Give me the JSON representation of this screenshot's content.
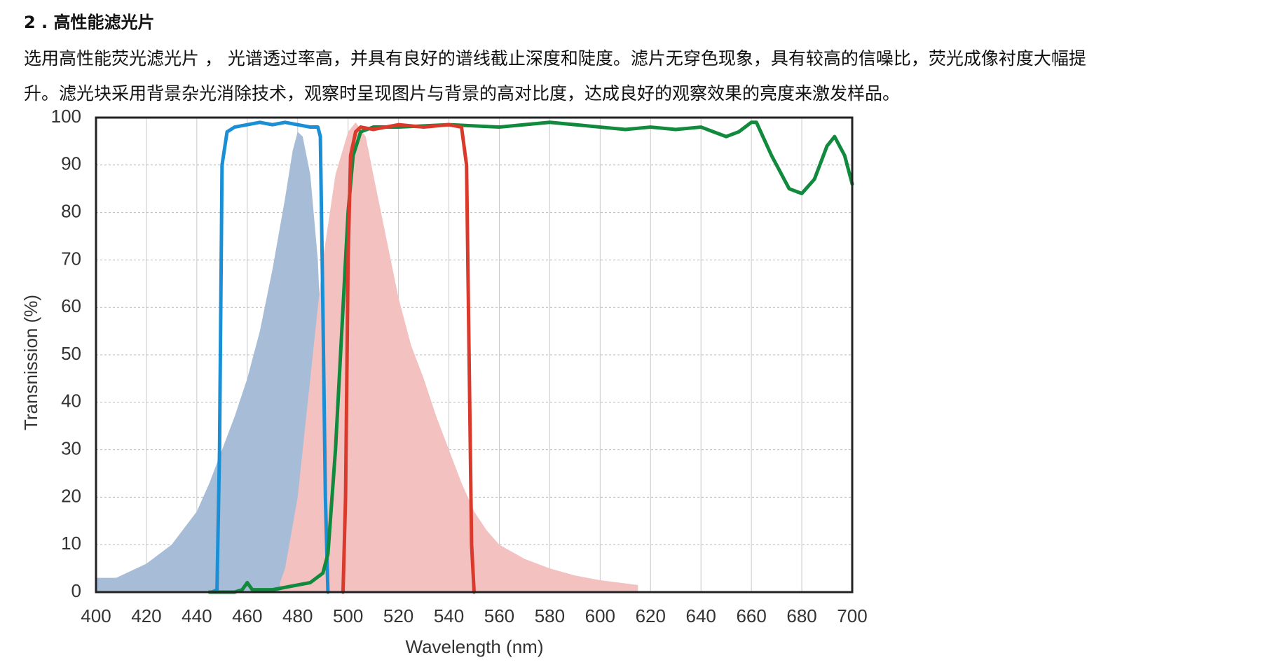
{
  "heading": "2 . 高性能滤光片",
  "paragraph": [
    "选用高性能荧光滤光片 ， 光谱透过率高，并具有良好的谱线截止深度和陡度。滤片无穿色现象，具有较高的信噪比，荧光成像衬度大幅提",
    "升。滤光块采用背景杂光消除技术，观察时呈现图片与背景的高对比度，达成良好的观察效果的亮度来激发样品。"
  ],
  "chart_data": {
    "type": "line",
    "x_label": "Wavelength (nm)",
    "y_label": "Transnission (%)",
    "xlim": [
      400,
      700
    ],
    "ylim": [
      0,
      100
    ],
    "xticks": [
      400,
      420,
      440,
      460,
      480,
      500,
      520,
      540,
      560,
      580,
      600,
      620,
      640,
      660,
      680,
      700
    ],
    "yticks": [
      0,
      10,
      20,
      30,
      40,
      50,
      60,
      70,
      80,
      90,
      100
    ],
    "grid": true,
    "series": [
      {
        "style": "area",
        "color": "#a7bcd6",
        "x": [
          400,
          408,
          420,
          430,
          440,
          445,
          450,
          455,
          460,
          465,
          470,
          475,
          478,
          480,
          482,
          485,
          488,
          490,
          492,
          494,
          496
        ],
        "values": [
          3,
          3,
          6,
          10,
          17,
          23,
          30,
          37,
          45,
          55,
          68,
          83,
          93,
          97,
          96,
          88,
          70,
          45,
          20,
          5,
          0
        ]
      },
      {
        "style": "area",
        "color": "#f4c1c1",
        "x": [
          473,
          475,
          480,
          485,
          490,
          495,
          500,
          503,
          507,
          510,
          515,
          520,
          525,
          530,
          535,
          540,
          545,
          550,
          555,
          560,
          570,
          580,
          590,
          600,
          615
        ],
        "values": [
          2,
          5,
          20,
          45,
          70,
          88,
          97,
          99,
          96,
          88,
          75,
          62,
          52,
          45,
          37,
          30,
          23,
          17,
          13,
          10,
          7,
          5,
          3.5,
          2.5,
          1.5
        ]
      },
      {
        "style": "line",
        "color": "#1b8fd6",
        "x": [
          446,
          448,
          449,
          450,
          452,
          455,
          460,
          465,
          470,
          475,
          480,
          485,
          488,
          489,
          490,
          491,
          492
        ],
        "values": [
          0,
          0.5,
          30,
          90,
          97,
          98,
          98.5,
          99,
          98.5,
          99,
          98.5,
          98,
          98,
          96,
          60,
          20,
          0
        ]
      },
      {
        "style": "line",
        "color": "#128a3e",
        "x": [
          445,
          455,
          458,
          460,
          462,
          470,
          480,
          485,
          490,
          492,
          495,
          498,
          500,
          502,
          505,
          510,
          520,
          540,
          560,
          570,
          580,
          590,
          600,
          610,
          620,
          630,
          640,
          650,
          655,
          660,
          662,
          668,
          675,
          680,
          685,
          690,
          693,
          697,
          700
        ],
        "values": [
          0,
          0,
          0.5,
          2,
          0.5,
          0.5,
          1.5,
          2,
          4,
          8,
          30,
          60,
          80,
          92,
          97,
          98,
          98,
          98.5,
          98,
          98.5,
          99,
          98.5,
          98,
          97.5,
          98,
          97.5,
          98,
          96,
          97,
          99,
          99,
          92,
          85,
          84,
          87,
          94,
          96,
          92,
          86
        ]
      },
      {
        "style": "line",
        "color": "#d93a2b",
        "x": [
          498,
          499,
          500,
          501,
          503,
          505,
          510,
          515,
          520,
          530,
          540,
          545,
          547,
          548,
          549,
          550
        ],
        "values": [
          0,
          20,
          70,
          92,
          97,
          98,
          97.5,
          98,
          98.5,
          98,
          98.5,
          98,
          90,
          50,
          10,
          0
        ]
      }
    ]
  }
}
